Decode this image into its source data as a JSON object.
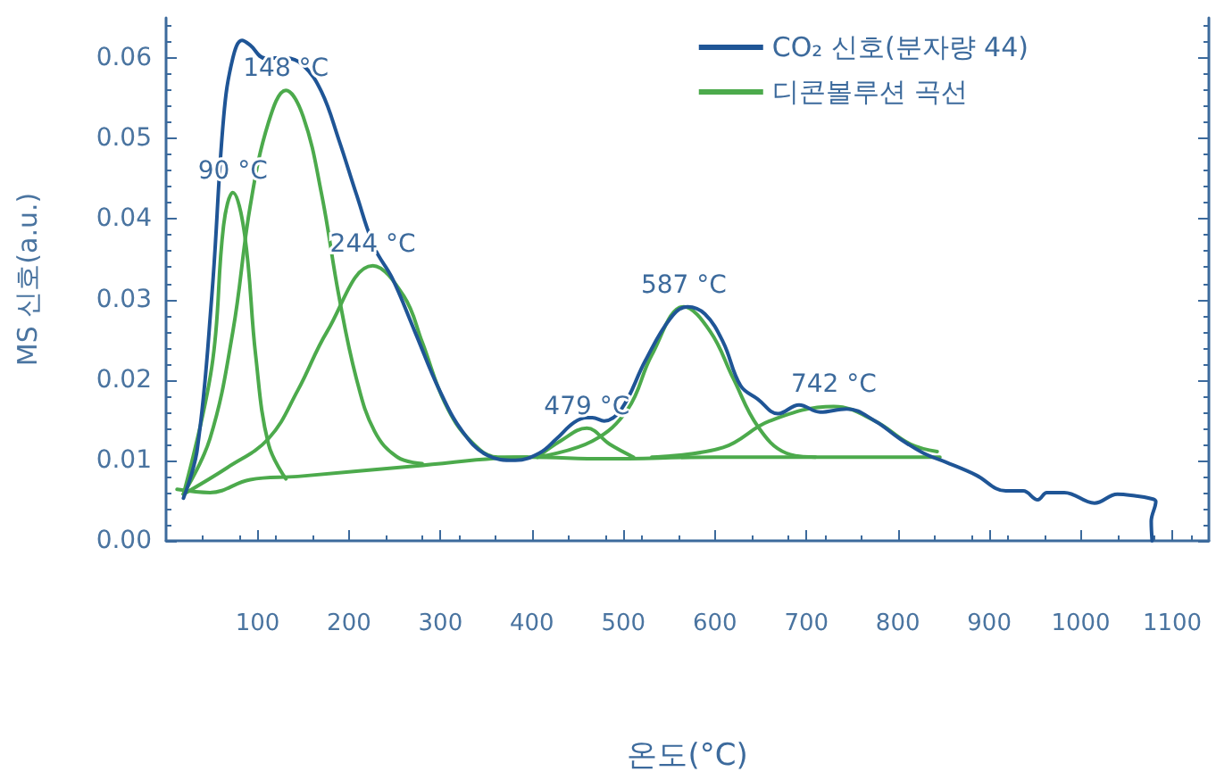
{
  "chart_data": {
    "type": "line",
    "xlabel": "온도(°C)",
    "ylabel": "MS 신호(a.u.)",
    "xlim": [
      0,
      1140
    ],
    "xticks": [
      100,
      200,
      300,
      400,
      500,
      600,
      700,
      800,
      900,
      1000,
      1100
    ],
    "ylim": [
      0,
      0.065
    ],
    "yticks": [
      {
        "value": 0,
        "label": "0.00"
      },
      {
        "value": 0.01,
        "label": "0.01"
      },
      {
        "value": 0.02,
        "label": "0.02"
      },
      {
        "value": 0.03,
        "label": "0.03"
      },
      {
        "value": 0.04,
        "label": "0.04"
      },
      {
        "value": 0.05,
        "label": "0.05"
      },
      {
        "value": 0.06,
        "label": "0.06"
      }
    ],
    "legend": "top right",
    "grid": false,
    "marker": "none",
    "annotations": [
      {
        "text": "90 °C",
        "x": 73,
        "y": 0.0433
      },
      {
        "text": "148 °C",
        "x": 131,
        "y": 0.056
      },
      {
        "text": "244 °C",
        "x": 226,
        "y": 0.0342
      },
      {
        "text": "479 °C",
        "x": 460,
        "y": 0.014
      },
      {
        "text": "587 °C",
        "x": 566,
        "y": 0.0291
      },
      {
        "text": "742 °C",
        "x": 730,
        "y": 0.0167
      }
    ],
    "series": [
      {
        "name": "CO₂ 신호(분자량 44)",
        "color": "#1f5596",
        "x": [
          19,
          34,
          50,
          63,
          73,
          83,
          92,
          108,
          131,
          150,
          170,
          189,
          208,
          228,
          247,
          272,
          299,
          324,
          350,
          382,
          408,
          427,
          446,
          460,
          466,
          479,
          498,
          524,
          551,
          570,
          589,
          609,
          628,
          647,
          669,
          692,
          715,
          744,
          775,
          802,
          828,
          852,
          885,
          918,
          937,
          953,
          963,
          982,
          1015,
          1040,
          1059,
          1075,
          1082,
          1077,
          1078
        ],
        "values": [
          0.0053,
          0.0113,
          0.0304,
          0.0527,
          0.06,
          0.0622,
          0.0616,
          0.06,
          0.06,
          0.0591,
          0.0558,
          0.0498,
          0.0431,
          0.0364,
          0.0327,
          0.026,
          0.0187,
          0.0136,
          0.0107,
          0.01,
          0.0109,
          0.0127,
          0.0147,
          0.0153,
          0.0153,
          0.0149,
          0.0164,
          0.0224,
          0.0276,
          0.0291,
          0.0282,
          0.0247,
          0.0193,
          0.0176,
          0.0158,
          0.0169,
          0.016,
          0.0164,
          0.0149,
          0.0127,
          0.0109,
          0.0098,
          0.0082,
          0.0062,
          0.0062,
          0.0051,
          0.006,
          0.006,
          0.0047,
          0.0058,
          0.0056,
          0.0053,
          0.0049,
          0.0024,
          0
        ]
      },
      {
        "name": "디콘볼루션 곡선",
        "color": "#4caa4c",
        "x": [
          19,
          50,
          63,
          73,
          86,
          98,
          112,
          131
        ],
        "values": [
          0.0058,
          0.0216,
          0.0393,
          0.0433,
          0.038,
          0.023,
          0.012,
          0.0077
        ]
      },
      {
        "color": "#4caa4c",
        "x": [
          19,
          48,
          73,
          92,
          112,
          131,
          150,
          170,
          189,
          208,
          228,
          253,
          280
        ],
        "values": [
          0.0058,
          0.0127,
          0.026,
          0.0416,
          0.052,
          0.056,
          0.0527,
          0.0431,
          0.0304,
          0.0202,
          0.0136,
          0.0104,
          0.0096
        ]
      },
      {
        "color": "#4caa4c",
        "x": [
          19,
          67,
          112,
          144,
          176,
          226,
          260,
          280,
          305,
          333,
          363,
          395
        ],
        "values": [
          0.0058,
          0.0091,
          0.0127,
          0.0187,
          0.026,
          0.0342,
          0.0304,
          0.0247,
          0.0171,
          0.0124,
          0.0104,
          0.0104
        ]
      },
      {
        "color": "#4caa4c",
        "x": [
          12,
          48,
          92,
          144,
          272,
          398,
          479,
          600,
          846
        ],
        "values": [
          0.0064,
          0.006,
          0.0076,
          0.008,
          0.0093,
          0.0104,
          0.0102,
          0.0104,
          0.0104
        ]
      },
      {
        "color": "#4caa4c",
        "x": [
          406,
          431,
          460,
          485,
          511
        ],
        "values": [
          0.0104,
          0.0124,
          0.014,
          0.012,
          0.0104
        ]
      },
      {
        "color": "#4caa4c",
        "x": [
          406,
          466,
          505,
          531,
          566,
          595,
          620,
          647,
          678,
          710
        ],
        "values": [
          0.0104,
          0.0124,
          0.0164,
          0.0231,
          0.0291,
          0.026,
          0.0202,
          0.0142,
          0.0109,
          0.0104
        ]
      },
      {
        "color": "#4caa4c",
        "x": [
          531,
          609,
          660,
          730,
          775,
          814,
          843
        ],
        "values": [
          0.0104,
          0.0116,
          0.0149,
          0.0167,
          0.0149,
          0.012,
          0.0111
        ]
      }
    ]
  }
}
